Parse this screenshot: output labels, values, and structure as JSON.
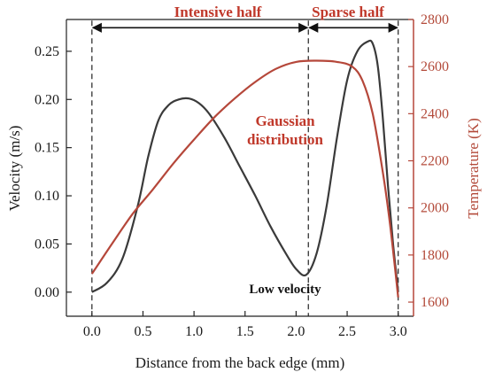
{
  "chart_data": {
    "type": "line",
    "title": "",
    "xlabel": "Distance from the back edge (mm)",
    "ylabel_left": "Velocity (m/s)",
    "ylabel_right": "Temperature (K)",
    "xlim": [
      -0.25,
      3.15
    ],
    "ylim_left": [
      -0.025,
      0.283
    ],
    "ylim_right": [
      1540,
      2800
    ],
    "x_ticks": [
      "0.0",
      "0.5",
      "1.0",
      "1.5",
      "2.0",
      "2.5",
      "3.0"
    ],
    "y_left_ticks": [
      "0.00",
      "0.05",
      "0.10",
      "0.15",
      "0.20",
      "0.25"
    ],
    "y_right_ticks": [
      "1600",
      "1800",
      "2000",
      "2200",
      "2400",
      "2600",
      "2800"
    ],
    "grid": false,
    "series": [
      {
        "axis": "left",
        "color": "#3a3a3a",
        "x": [
          0.0,
          0.15,
          0.3,
          0.45,
          0.55,
          0.65,
          0.75,
          0.85,
          0.95,
          1.05,
          1.15,
          1.3,
          1.45,
          1.6,
          1.75,
          1.9,
          2.0,
          2.1,
          2.2,
          2.3,
          2.4,
          2.5,
          2.6,
          2.7,
          2.75,
          2.8,
          2.85,
          2.9,
          2.95,
          3.0
        ],
        "values": [
          0.0,
          0.01,
          0.035,
          0.09,
          0.14,
          0.178,
          0.194,
          0.2,
          0.201,
          0.196,
          0.185,
          0.16,
          0.13,
          0.1,
          0.068,
          0.04,
          0.024,
          0.018,
          0.04,
          0.09,
          0.16,
          0.22,
          0.25,
          0.26,
          0.258,
          0.235,
          0.18,
          0.11,
          0.05,
          0.0
        ]
      },
      {
        "axis": "right",
        "color": "#b5473a",
        "x": [
          0.0,
          0.2,
          0.4,
          0.6,
          0.8,
          1.0,
          1.2,
          1.4,
          1.6,
          1.8,
          2.0,
          2.2,
          2.4,
          2.55,
          2.65,
          2.75,
          2.85,
          2.92,
          3.0
        ],
        "values": [
          1720,
          1850,
          1975,
          2080,
          2190,
          2290,
          2385,
          2465,
          2535,
          2590,
          2620,
          2625,
          2620,
          2600,
          2540,
          2400,
          2150,
          1930,
          1620
        ]
      }
    ],
    "annotations": {
      "intensive": "Intensive half",
      "sparse": "Sparse half",
      "gaussian_line1": "Gaussian",
      "gaussian_line2": "distribution",
      "low_velocity": "Low velocity"
    },
    "markers_x": [
      0.0,
      2.12,
      3.0
    ],
    "marker_arrow_y": 2765
  }
}
